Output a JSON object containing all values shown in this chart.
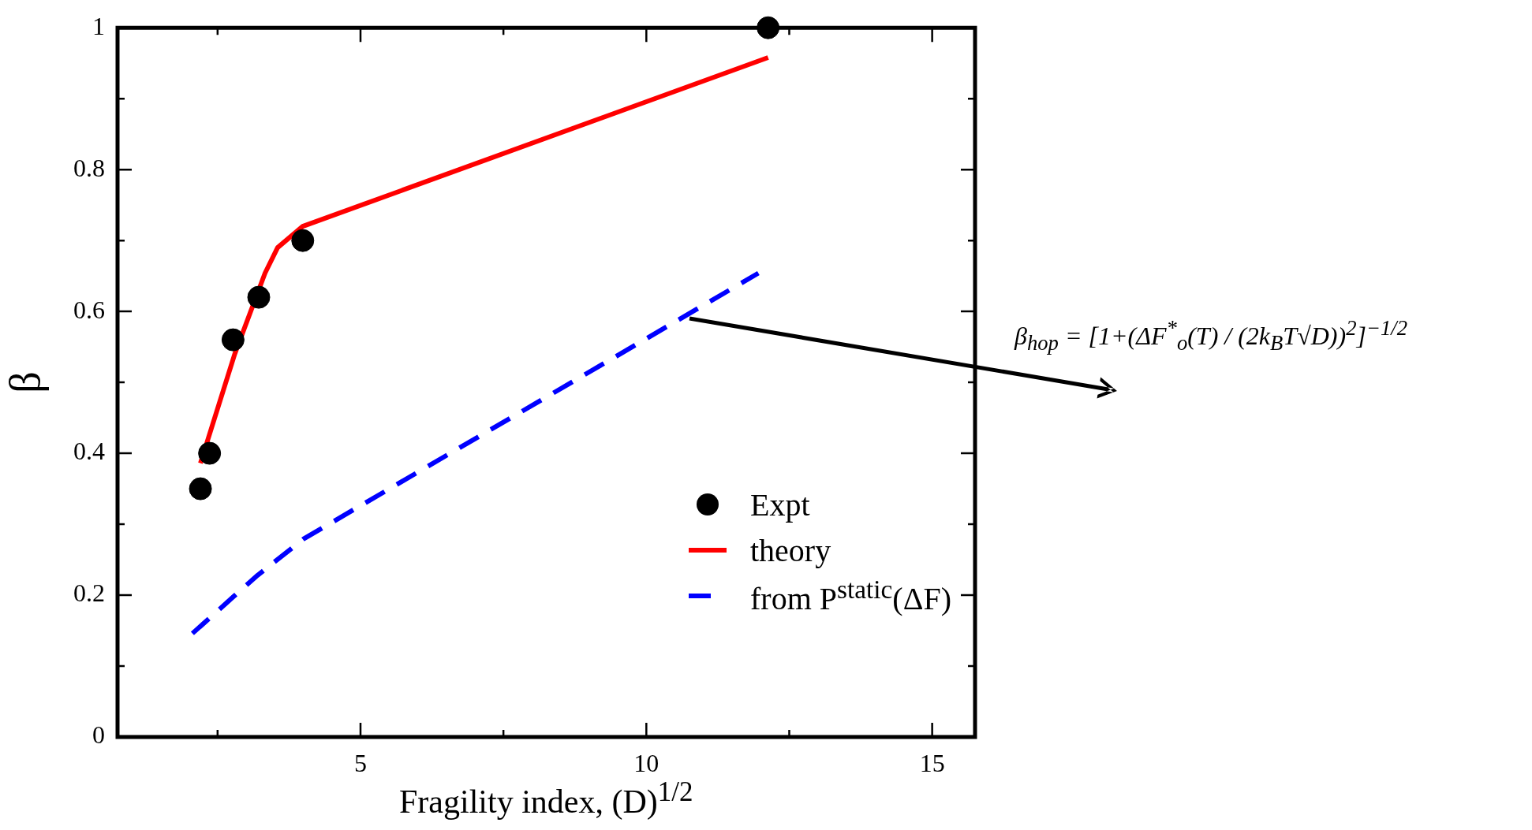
{
  "chart_data": {
    "type": "line",
    "xlabel": "Fragility index, (D)$^{1/2}$",
    "ylabel": "β",
    "xlim": [
      0.75,
      15.75
    ],
    "ylim": [
      0,
      1
    ],
    "xticks": [
      {
        "value": 2.5,
        "label": null
      },
      5,
      {
        "value": 7.5,
        "label": null
      },
      10,
      {
        "value": 12.5,
        "label": null
      },
      15
    ],
    "yticks": [
      0,
      {
        "value": 0.1,
        "label": null
      },
      0.2,
      {
        "value": 0.3,
        "label": null
      },
      0.4,
      {
        "value": 0.5,
        "label": null
      },
      0.6,
      {
        "value": 0.7,
        "label": null
      },
      0.8,
      {
        "value": 0.9,
        "label": null
      },
      1
    ],
    "grid": false,
    "legend": "bottom right",
    "series": [
      {
        "name": "Expt",
        "type": "scatter",
        "marker": "circle",
        "color": "#000000",
        "x": [
          2.2,
          2.36,
          2.77,
          3.22,
          3.99,
          12.13
        ],
        "values": [
          0.35,
          0.4,
          0.56,
          0.62,
          0.7,
          1.0
        ]
      },
      {
        "name": "theory",
        "line_style": "solid",
        "color": "#ff0000",
        "x": [
          2.2,
          2.8,
          3.33,
          3.55,
          3.99,
          12.13
        ],
        "values": [
          0.386,
          0.54,
          0.654,
          0.69,
          0.72,
          0.958
        ]
      },
      {
        "name": "from P$^{static}$(ΔF)",
        "line_style": "dashed",
        "color": "#0000ff",
        "x": [
          2.06,
          2.78,
          3.2,
          4.0,
          11.96
        ],
        "values": [
          0.146,
          0.198,
          0.228,
          0.279,
          0.654
        ]
      }
    ],
    "annotations": [
      "β$_{hop}$ = [1+(ΔF$^{*}$$_{o}$(T) / (2k$_{B}$T√D))$^{2}$]$^{−1/2}$"
    ]
  }
}
